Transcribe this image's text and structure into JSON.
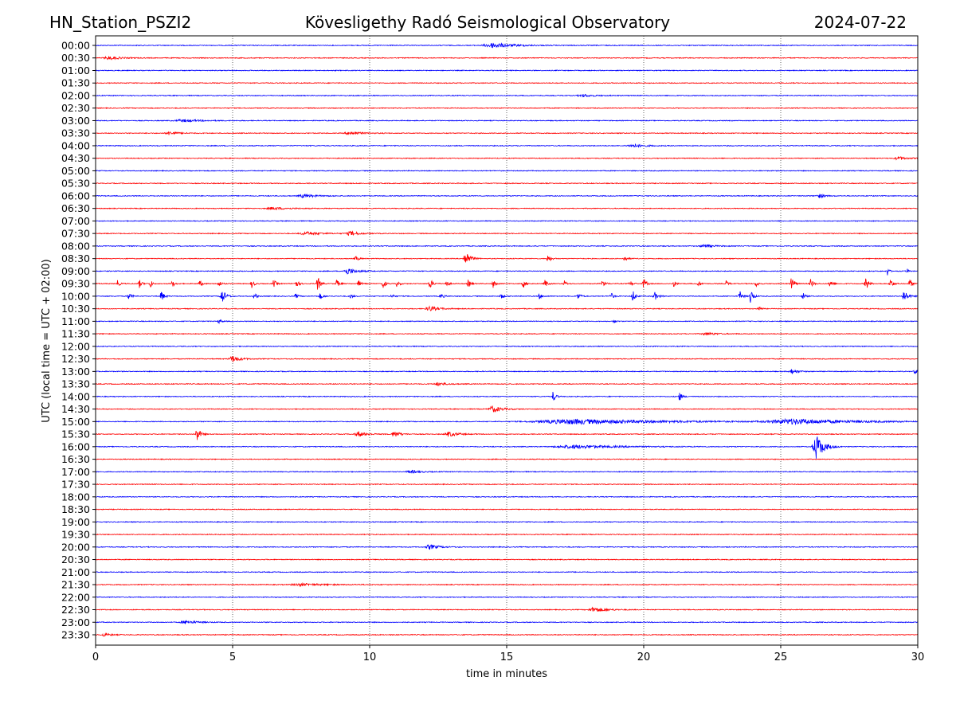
{
  "header": {
    "station": "HN_Station_PSZI2",
    "observatory": "Kövesligethy Radó Seismological Observatory",
    "date": "2024-07-22"
  },
  "chart_data": {
    "type": "line",
    "title": "Kövesligethy Radó Seismological Observatory",
    "xlabel": "time in minutes",
    "ylabel": "UTC (local time = UTC + 02:00)",
    "xlim": [
      0,
      30
    ],
    "xticks": [
      "0",
      "5",
      "10",
      "15",
      "20",
      "25",
      "30"
    ],
    "grid": "vertical dotted at x ticks",
    "series_colors": [
      "#0000ff",
      "#ff0000"
    ],
    "rows": [
      "00:00",
      "00:30",
      "01:00",
      "01:30",
      "02:00",
      "02:30",
      "03:00",
      "03:30",
      "04:00",
      "04:30",
      "05:00",
      "05:30",
      "06:00",
      "06:30",
      "07:00",
      "07:30",
      "08:00",
      "08:30",
      "09:00",
      "09:30",
      "10:00",
      "10:30",
      "11:00",
      "11:30",
      "12:00",
      "12:30",
      "13:00",
      "13:30",
      "14:00",
      "14:30",
      "15:00",
      "15:30",
      "16:00",
      "16:30",
      "17:00",
      "17:30",
      "18:00",
      "18:30",
      "19:00",
      "19:30",
      "20:00",
      "20:30",
      "21:00",
      "21:30",
      "22:00",
      "22:30",
      "23:00",
      "23:30"
    ],
    "events": [
      {
        "row": "00:00",
        "minute": 14.5,
        "amp": 3,
        "dur": 0.7
      },
      {
        "row": "00:30",
        "minute": 0.5,
        "amp": 2,
        "dur": 0.4
      },
      {
        "row": "02:00",
        "minute": 17.8,
        "amp": 1.5,
        "dur": 0.4
      },
      {
        "row": "03:00",
        "minute": 3.2,
        "amp": 1.5,
        "dur": 0.6
      },
      {
        "row": "03:30",
        "minute": 2.7,
        "amp": 2,
        "dur": 0.3
      },
      {
        "row": "03:30",
        "minute": 9.3,
        "amp": 2,
        "dur": 0.4
      },
      {
        "row": "04:00",
        "minute": 19.6,
        "amp": 2,
        "dur": 0.4
      },
      {
        "row": "04:30",
        "minute": 29.3,
        "amp": 2,
        "dur": 0.3
      },
      {
        "row": "06:00",
        "minute": 7.6,
        "amp": 2,
        "dur": 0.4
      },
      {
        "row": "06:00",
        "minute": 26.4,
        "amp": 2.5,
        "dur": 0.2
      },
      {
        "row": "06:30",
        "minute": 6.5,
        "amp": 1.5,
        "dur": 0.5
      },
      {
        "row": "07:30",
        "minute": 9.3,
        "amp": 2.5,
        "dur": 0.3
      },
      {
        "row": "07:30",
        "minute": 7.7,
        "amp": 2,
        "dur": 0.5
      },
      {
        "row": "08:00",
        "minute": 22.2,
        "amp": 2,
        "dur": 0.3
      },
      {
        "row": "08:30",
        "minute": 9.5,
        "amp": 3,
        "dur": 0.1
      },
      {
        "row": "08:30",
        "minute": 13.5,
        "amp": 10,
        "dur": 0.15
      },
      {
        "row": "08:30",
        "minute": 16.5,
        "amp": 5,
        "dur": 0.1
      },
      {
        "row": "08:30",
        "minute": 19.3,
        "amp": 3,
        "dur": 0.1
      },
      {
        "row": "09:00",
        "minute": 9.2,
        "amp": 4,
        "dur": 0.3
      },
      {
        "row": "09:00",
        "minute": 28.9,
        "amp": 6,
        "dur": 0.05
      },
      {
        "row": "09:00",
        "minute": 29.6,
        "amp": 4,
        "dur": 0.05
      },
      {
        "row": "09:30",
        "minute": 0.8,
        "amp": 4,
        "dur": 0.08
      },
      {
        "row": "09:30",
        "minute": 1.6,
        "amp": 5,
        "dur": 0.08
      },
      {
        "row": "09:30",
        "minute": 2.0,
        "amp": 7,
        "dur": 0.05
      },
      {
        "row": "09:30",
        "minute": 2.8,
        "amp": 4,
        "dur": 0.08
      },
      {
        "row": "09:30",
        "minute": 3.8,
        "amp": 4,
        "dur": 0.08
      },
      {
        "row": "09:30",
        "minute": 4.5,
        "amp": 4,
        "dur": 0.08
      },
      {
        "row": "09:30",
        "minute": 5.7,
        "amp": 5,
        "dur": 0.08
      },
      {
        "row": "09:30",
        "minute": 6.5,
        "amp": 5,
        "dur": 0.08
      },
      {
        "row": "09:30",
        "minute": 7.3,
        "amp": 5,
        "dur": 0.1
      },
      {
        "row": "09:30",
        "minute": 8.1,
        "amp": 10,
        "dur": 0.08
      },
      {
        "row": "09:30",
        "minute": 8.8,
        "amp": 5,
        "dur": 0.08
      },
      {
        "row": "09:30",
        "minute": 9.6,
        "amp": 4,
        "dur": 0.08
      },
      {
        "row": "09:30",
        "minute": 10.5,
        "amp": 6,
        "dur": 0.08
      },
      {
        "row": "09:30",
        "minute": 11.0,
        "amp": 4,
        "dur": 0.08
      },
      {
        "row": "09:30",
        "minute": 12.2,
        "amp": 6,
        "dur": 0.1
      },
      {
        "row": "09:30",
        "minute": 12.8,
        "amp": 4,
        "dur": 0.08
      },
      {
        "row": "09:30",
        "minute": 13.6,
        "amp": 5,
        "dur": 0.08
      },
      {
        "row": "09:30",
        "minute": 14.5,
        "amp": 5,
        "dur": 0.08
      },
      {
        "row": "09:30",
        "minute": 15.6,
        "amp": 6,
        "dur": 0.08
      },
      {
        "row": "09:30",
        "minute": 16.4,
        "amp": 5,
        "dur": 0.08
      },
      {
        "row": "09:30",
        "minute": 17.1,
        "amp": 4,
        "dur": 0.08
      },
      {
        "row": "09:30",
        "minute": 18.5,
        "amp": 5,
        "dur": 0.08
      },
      {
        "row": "09:30",
        "minute": 19.5,
        "amp": 4,
        "dur": 0.08
      },
      {
        "row": "09:30",
        "minute": 20.0,
        "amp": 7,
        "dur": 0.08
      },
      {
        "row": "09:30",
        "minute": 21.1,
        "amp": 4,
        "dur": 0.08
      },
      {
        "row": "09:30",
        "minute": 22.0,
        "amp": 4,
        "dur": 0.08
      },
      {
        "row": "09:30",
        "minute": 23.0,
        "amp": 4,
        "dur": 0.08
      },
      {
        "row": "09:30",
        "minute": 24.1,
        "amp": 4,
        "dur": 0.08
      },
      {
        "row": "09:30",
        "minute": 25.4,
        "amp": 10,
        "dur": 0.08
      },
      {
        "row": "09:30",
        "minute": 26.1,
        "amp": 6,
        "dur": 0.08
      },
      {
        "row": "09:30",
        "minute": 26.8,
        "amp": 5,
        "dur": 0.08
      },
      {
        "row": "09:30",
        "minute": 28.1,
        "amp": 10,
        "dur": 0.08
      },
      {
        "row": "09:30",
        "minute": 29.0,
        "amp": 7,
        "dur": 0.08
      },
      {
        "row": "09:30",
        "minute": 29.7,
        "amp": 6,
        "dur": 0.08
      },
      {
        "row": "10:00",
        "minute": 1.2,
        "amp": 4,
        "dur": 0.1
      },
      {
        "row": "10:00",
        "minute": 2.4,
        "amp": 8,
        "dur": 0.08
      },
      {
        "row": "10:00",
        "minute": 4.6,
        "amp": 10,
        "dur": 0.12
      },
      {
        "row": "10:00",
        "minute": 5.8,
        "amp": 4,
        "dur": 0.08
      },
      {
        "row": "10:00",
        "minute": 7.3,
        "amp": 3,
        "dur": 0.08
      },
      {
        "row": "10:00",
        "minute": 8.2,
        "amp": 4,
        "dur": 0.08
      },
      {
        "row": "10:00",
        "minute": 9.3,
        "amp": 3,
        "dur": 0.08
      },
      {
        "row": "10:00",
        "minute": 10.8,
        "amp": 3,
        "dur": 0.08
      },
      {
        "row": "10:00",
        "minute": 12.6,
        "amp": 3,
        "dur": 0.1
      },
      {
        "row": "10:00",
        "minute": 14.8,
        "amp": 3,
        "dur": 0.1
      },
      {
        "row": "10:00",
        "minute": 16.2,
        "amp": 3,
        "dur": 0.1
      },
      {
        "row": "10:00",
        "minute": 17.6,
        "amp": 4,
        "dur": 0.1
      },
      {
        "row": "10:00",
        "minute": 18.8,
        "amp": 5,
        "dur": 0.08
      },
      {
        "row": "10:00",
        "minute": 19.6,
        "amp": 8,
        "dur": 0.08
      },
      {
        "row": "10:00",
        "minute": 20.4,
        "amp": 5,
        "dur": 0.12
      },
      {
        "row": "10:00",
        "minute": 23.5,
        "amp": 7,
        "dur": 0.08
      },
      {
        "row": "10:00",
        "minute": 23.9,
        "amp": 10,
        "dur": 0.08
      },
      {
        "row": "10:00",
        "minute": 25.8,
        "amp": 5,
        "dur": 0.08
      },
      {
        "row": "10:00",
        "minute": 29.5,
        "amp": 8,
        "dur": 0.12
      },
      {
        "row": "10:30",
        "minute": 12.2,
        "amp": 3,
        "dur": 0.3
      },
      {
        "row": "10:30",
        "minute": 24.2,
        "amp": 5,
        "dur": 0.06
      },
      {
        "row": "11:00",
        "minute": 4.5,
        "amp": 3,
        "dur": 0.08
      },
      {
        "row": "11:00",
        "minute": 18.9,
        "amp": 4,
        "dur": 0.05
      },
      {
        "row": "11:30",
        "minute": 22.3,
        "amp": 1.5,
        "dur": 0.4
      },
      {
        "row": "12:30",
        "minute": 5.0,
        "amp": 4,
        "dur": 0.25
      },
      {
        "row": "13:00",
        "minute": 25.4,
        "amp": 3,
        "dur": 0.2
      },
      {
        "row": "13:00",
        "minute": 29.9,
        "amp": 3,
        "dur": 0.1
      },
      {
        "row": "13:30",
        "minute": 12.5,
        "amp": 2,
        "dur": 0.3
      },
      {
        "row": "14:00",
        "minute": 16.7,
        "amp": 7,
        "dur": 0.08
      },
      {
        "row": "14:00",
        "minute": 21.3,
        "amp": 6,
        "dur": 0.08
      },
      {
        "row": "14:30",
        "minute": 14.5,
        "amp": 4,
        "dur": 0.3
      },
      {
        "row": "15:00",
        "minute": 17.5,
        "amp": 3,
        "dur": 3
      },
      {
        "row": "15:00",
        "minute": 25.5,
        "amp": 3,
        "dur": 2
      },
      {
        "row": "15:30",
        "minute": 3.7,
        "amp": 10,
        "dur": 0.1
      },
      {
        "row": "15:30",
        "minute": 9.6,
        "amp": 3,
        "dur": 0.3
      },
      {
        "row": "15:30",
        "minute": 10.9,
        "amp": 4,
        "dur": 0.2
      },
      {
        "row": "15:30",
        "minute": 12.9,
        "amp": 3,
        "dur": 0.3
      },
      {
        "row": "16:00",
        "minute": 26.3,
        "amp": 16,
        "dur": 0.25
      },
      {
        "row": "16:00",
        "minute": 17.5,
        "amp": 2,
        "dur": 1.5
      },
      {
        "row": "17:00",
        "minute": 11.5,
        "amp": 2,
        "dur": 0.3
      },
      {
        "row": "20:00",
        "minute": 12.2,
        "amp": 3,
        "dur": 0.3
      },
      {
        "row": "21:30",
        "minute": 7.5,
        "amp": 1.5,
        "dur": 0.8
      },
      {
        "row": "22:30",
        "minute": 18.2,
        "amp": 3,
        "dur": 0.4
      },
      {
        "row": "23:00",
        "minute": 3.3,
        "amp": 2,
        "dur": 0.4
      },
      {
        "row": "23:30",
        "minute": 0.3,
        "amp": 2,
        "dur": 0.2
      }
    ]
  }
}
